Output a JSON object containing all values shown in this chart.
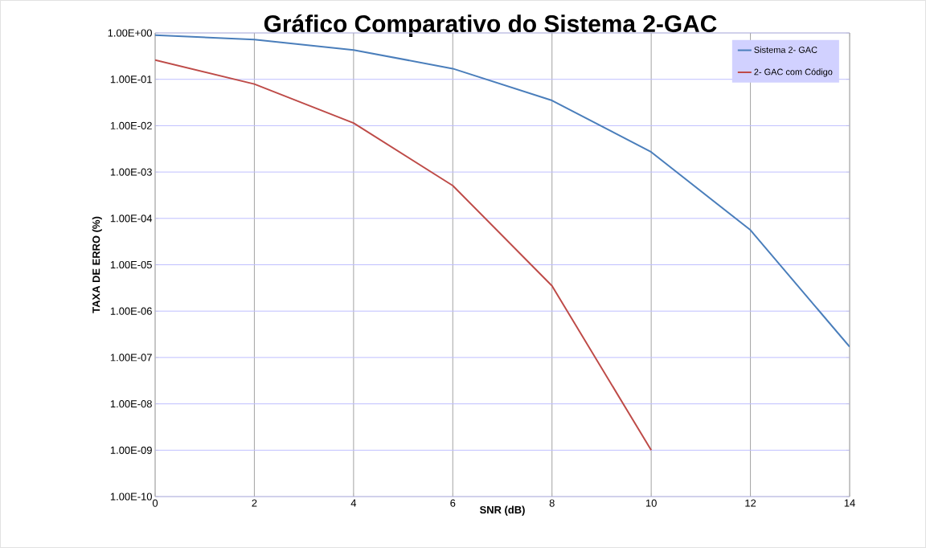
{
  "chart_data": {
    "type": "line",
    "title": "Gráfico Comparativo do Sistema 2-GAC",
    "xlabel": "SNR (dB)",
    "ylabel": "TAXA DE ERRO (%)",
    "log": "y",
    "grid": true,
    "legend": "top right",
    "line_style": "solid",
    "xlim": [
      0,
      14
    ],
    "xticks": [
      0,
      2,
      4,
      6,
      8,
      10,
      12,
      14
    ],
    "ylim": [
      1e-10,
      1
    ],
    "yticks": [
      {
        "value": 1,
        "label": "1.00E+00"
      },
      {
        "value": 0.1,
        "label": "1.00E-01"
      },
      {
        "value": 0.01,
        "label": "1.00E-02"
      },
      {
        "value": 0.001,
        "label": "1.00E-03"
      },
      {
        "value": 0.0001,
        "label": "1.00E-04"
      },
      {
        "value": 1e-05,
        "label": "1.00E-05"
      },
      {
        "value": 1e-06,
        "label": "1.00E-06"
      },
      {
        "value": 1e-07,
        "label": "1.00E-07"
      },
      {
        "value": 1e-08,
        "label": "1.00E-08"
      },
      {
        "value": 1e-09,
        "label": "1.00E-09"
      },
      {
        "value": 1e-10,
        "label": "1.00E-10"
      }
    ],
    "series": [
      {
        "name": "Sistema 2- GAC",
        "color": "#4a7ebb",
        "x": [
          0,
          2,
          4,
          6,
          8,
          10,
          12,
          14
        ],
        "values": [
          0.9,
          0.72,
          0.43,
          0.17,
          0.035,
          0.0027,
          5.6e-05,
          1.7e-07
        ]
      },
      {
        "name": "2- GAC com Código",
        "color": "#be4b48",
        "x": [
          0,
          2,
          4,
          6,
          8,
          10
        ],
        "values": [
          0.26,
          0.079,
          0.0114,
          0.00051,
          3.5e-06,
          1e-09
        ]
      }
    ]
  }
}
